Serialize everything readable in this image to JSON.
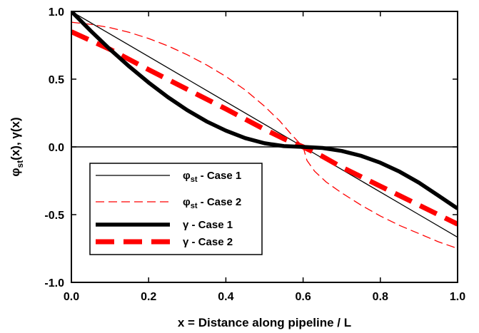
{
  "chart_data": {
    "type": "line",
    "xlabel": "x = Distance along pipeline / L",
    "ylabel": {
      "phi": "φ",
      "sub": "st",
      "rest": "(x), γ(x)"
    },
    "xlim": [
      0,
      1
    ],
    "ylim": [
      -1,
      1
    ],
    "xticks": [
      {
        "v": 0,
        "label": "0.0"
      },
      {
        "v": 0.2,
        "label": "0.2"
      },
      {
        "v": 0.4,
        "label": "0.4"
      },
      {
        "v": 0.6,
        "label": "0.6"
      },
      {
        "v": 0.8,
        "label": "0.8"
      },
      {
        "v": 1.0,
        "label": "1.0"
      }
    ],
    "yticks": [
      {
        "v": 1.0,
        "label": "1.0"
      },
      {
        "v": 0.5,
        "label": "0.5"
      },
      {
        "v": 0.0,
        "label": "0.0"
      },
      {
        "v": -0.5,
        "label": "-0.5"
      },
      {
        "v": -1.0,
        "label": "-1.0"
      }
    ],
    "reference_line_y": 0,
    "grid": false,
    "legend_position": "lower-left",
    "series": [
      {
        "name": {
          "sym": "φ",
          "sub": "st",
          "rest": " - Case 1"
        },
        "color": "#000000",
        "width": 1.3,
        "dash": "",
        "x": [
          0,
          0.1,
          0.2,
          0.3,
          0.4,
          0.5,
          0.6,
          0.7,
          0.8,
          0.9,
          1.0
        ],
        "y": [
          1.0,
          0.833,
          0.667,
          0.5,
          0.333,
          0.167,
          0.0,
          -0.167,
          -0.333,
          -0.5,
          -0.667
        ]
      },
      {
        "name": {
          "sym": "φ",
          "sub": "st",
          "rest": " - Case 2"
        },
        "color": "#ff0000",
        "width": 1.3,
        "dash": "12,6",
        "x": [
          0,
          0.05,
          0.1,
          0.15,
          0.2,
          0.25,
          0.3,
          0.35,
          0.4,
          0.45,
          0.5,
          0.54,
          0.57,
          0.59,
          0.6,
          0.61,
          0.63,
          0.66,
          0.7,
          0.75,
          0.8,
          0.85,
          0.9,
          0.95,
          1.0
        ],
        "y": [
          0.92,
          0.905,
          0.88,
          0.845,
          0.8,
          0.745,
          0.68,
          0.605,
          0.52,
          0.42,
          0.3,
          0.19,
          0.09,
          0.03,
          0.0,
          -0.1,
          -0.18,
          -0.26,
          -0.34,
          -0.43,
          -0.51,
          -0.58,
          -0.64,
          -0.7,
          -0.75
        ]
      },
      {
        "name": {
          "sym": "γ",
          "sub": "",
          "rest": " - Case 1"
        },
        "color": "#000000",
        "width": 5.5,
        "dash": "",
        "x": [
          0,
          0.05,
          0.1,
          0.15,
          0.2,
          0.25,
          0.3,
          0.35,
          0.4,
          0.45,
          0.5,
          0.55,
          0.6,
          0.65,
          0.7,
          0.75,
          0.8,
          0.85,
          0.9,
          0.95,
          1.0
        ],
        "y": [
          1.0,
          0.857,
          0.72,
          0.593,
          0.475,
          0.367,
          0.271,
          0.188,
          0.12,
          0.065,
          0.027,
          0.006,
          0.0,
          -0.008,
          -0.03,
          -0.066,
          -0.117,
          -0.183,
          -0.264,
          -0.359,
          -0.455
        ]
      },
      {
        "name": {
          "sym": "γ",
          "sub": "",
          "rest": " - Case 2"
        },
        "color": "#ff0000",
        "width": 7,
        "dash": "26,13",
        "x": [
          0,
          0.1,
          0.2,
          0.3,
          0.4,
          0.5,
          0.55,
          0.6,
          0.65,
          0.7,
          0.8,
          0.9,
          1.0
        ],
        "y": [
          0.85,
          0.72,
          0.57,
          0.425,
          0.28,
          0.13,
          0.06,
          0.0,
          -0.07,
          -0.15,
          -0.29,
          -0.43,
          -0.57
        ]
      }
    ]
  }
}
